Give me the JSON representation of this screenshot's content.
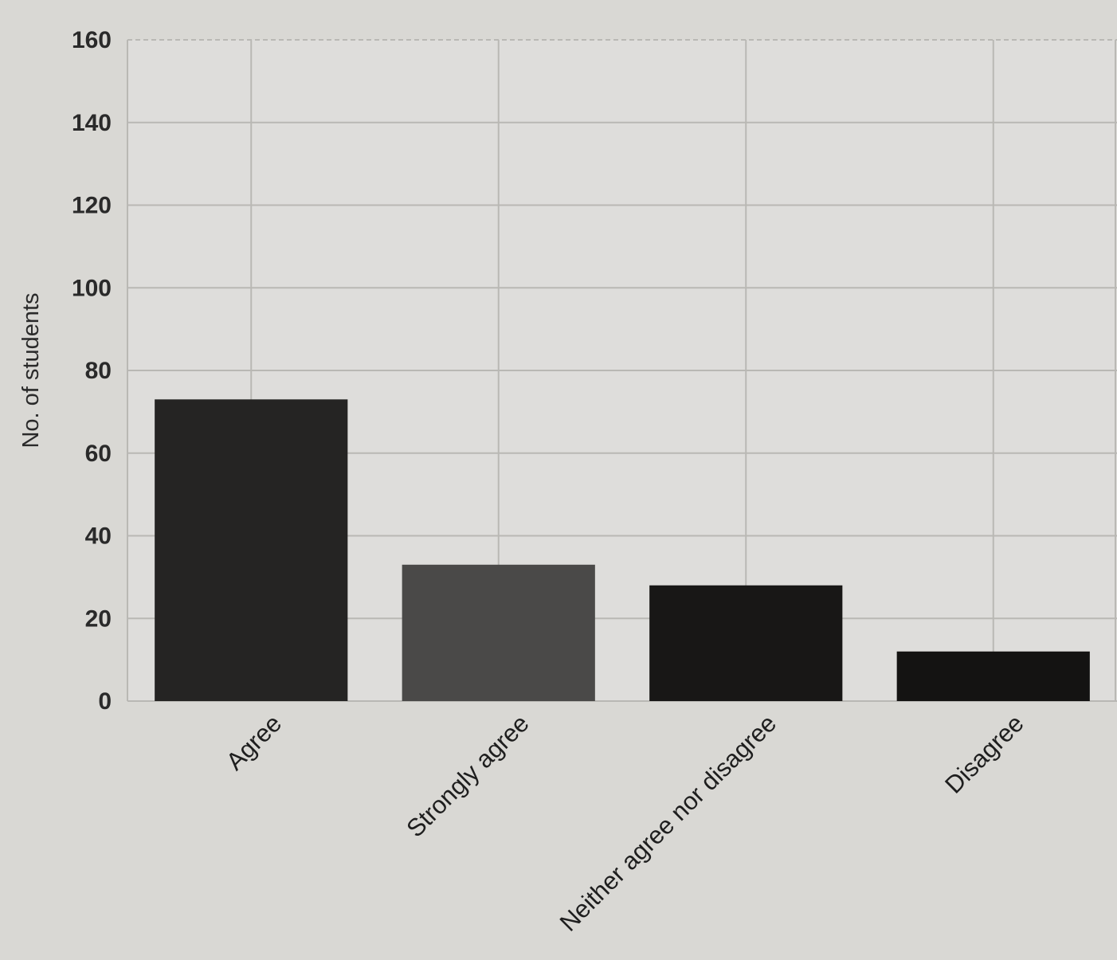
{
  "chart_data": {
    "type": "bar",
    "title": "",
    "xlabel": "",
    "ylabel": "No. of students",
    "ylim": [
      0,
      160
    ],
    "yticks": [
      0,
      20,
      40,
      60,
      80,
      100,
      120,
      140,
      160
    ],
    "grid": true,
    "legend": "none",
    "categories": [
      "Agree",
      "Strongly agree",
      "Neither agree nor disagree",
      "Disagree"
    ],
    "values": [
      73,
      33,
      28,
      12
    ],
    "colors": [
      "#252423",
      "#4a4948",
      "#181716",
      "#141312"
    ],
    "plot_background": "#dedddb",
    "grid_color": "#b9b8b4"
  }
}
